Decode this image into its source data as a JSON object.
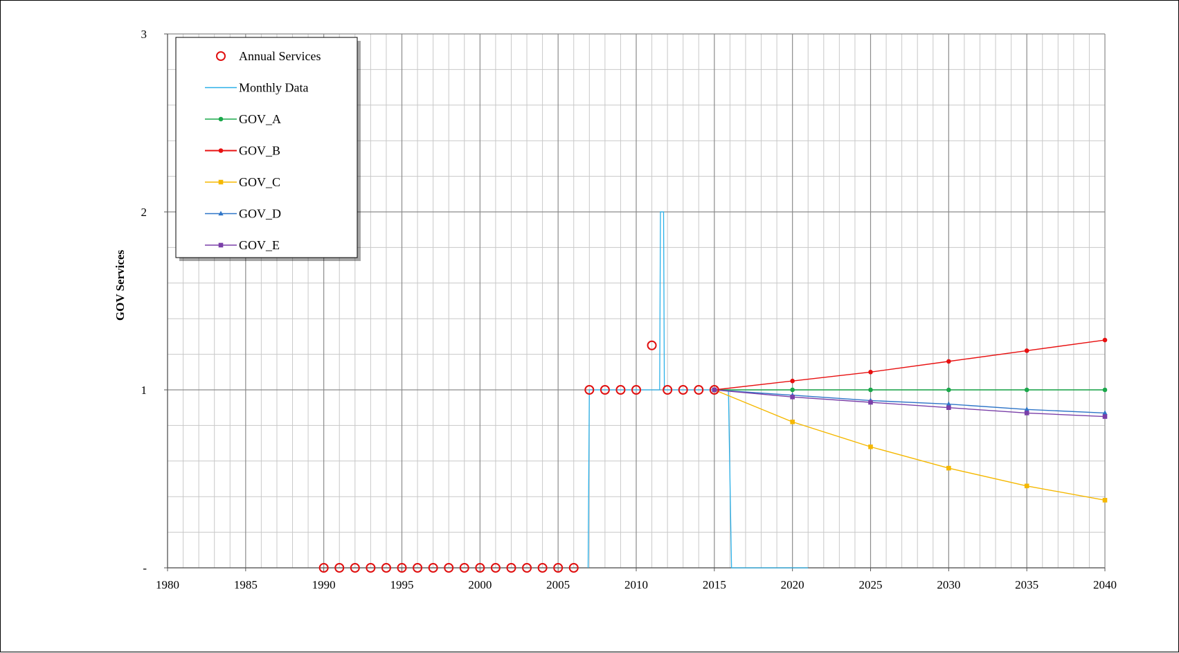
{
  "chart_data": {
    "type": "line",
    "xlabel": "",
    "ylabel": "GOV Services",
    "xlim": [
      1980,
      2040
    ],
    "ylim": [
      0,
      3
    ],
    "x_ticks": [
      "1980",
      "1985",
      "1990",
      "1995",
      "2000",
      "2005",
      "2010",
      "2015",
      "2020",
      "2025",
      "2030",
      "2035",
      "2040"
    ],
    "y_ticks": [
      "-",
      "1",
      "2",
      "3"
    ],
    "grid": true,
    "legend_position": "top-left",
    "series": [
      {
        "name": "Annual Services",
        "kind": "markers",
        "color": "#e01010",
        "marker": "open-circle",
        "x": [
          1990,
          1991,
          1992,
          1993,
          1994,
          1995,
          1996,
          1997,
          1998,
          1999,
          2000,
          2001,
          2002,
          2003,
          2004,
          2005,
          2006,
          2007,
          2008,
          2009,
          2010,
          2011,
          2012,
          2013,
          2014,
          2015
        ],
        "values": [
          0,
          0,
          0,
          0,
          0,
          0,
          0,
          0,
          0,
          0,
          0,
          0,
          0,
          0,
          0,
          0,
          0,
          1,
          1,
          1,
          1,
          1.25,
          1,
          1,
          1,
          1
        ]
      },
      {
        "name": "Monthly Data",
        "kind": "line",
        "color": "#2ab0e8",
        "marker": "none",
        "x": [
          2006.92,
          2007.0,
          2011.5,
          2011.55,
          2011.75,
          2011.8,
          2015.9,
          2016.1,
          2021.0
        ],
        "values": [
          0,
          1,
          1,
          2,
          2,
          1,
          1,
          0,
          0
        ]
      },
      {
        "name": "GOV_A",
        "kind": "line",
        "color": "#1aa84a",
        "marker": "circle",
        "x": [
          2015,
          2020,
          2025,
          2030,
          2035,
          2040
        ],
        "values": [
          1,
          1,
          1,
          1,
          1,
          1
        ]
      },
      {
        "name": "GOV_B",
        "kind": "line",
        "color": "#e81010",
        "marker": "circle",
        "x": [
          2015,
          2020,
          2025,
          2030,
          2035,
          2040
        ],
        "values": [
          1,
          1.05,
          1.1,
          1.16,
          1.22,
          1.28
        ]
      },
      {
        "name": "GOV_C",
        "kind": "line",
        "color": "#f5b800",
        "marker": "square",
        "x": [
          2015,
          2020,
          2025,
          2030,
          2035,
          2040
        ],
        "values": [
          1,
          0.82,
          0.68,
          0.56,
          0.46,
          0.38
        ]
      },
      {
        "name": "GOV_D",
        "kind": "line",
        "color": "#2e75c8",
        "marker": "triangle",
        "x": [
          2015,
          2020,
          2025,
          2030,
          2035,
          2040
        ],
        "values": [
          1,
          0.97,
          0.94,
          0.92,
          0.89,
          0.87
        ]
      },
      {
        "name": "GOV_E",
        "kind": "line",
        "color": "#7a3fa8",
        "marker": "square",
        "x": [
          2015,
          2020,
          2025,
          2030,
          2035,
          2040
        ],
        "values": [
          1,
          0.96,
          0.93,
          0.9,
          0.87,
          0.85
        ]
      }
    ]
  }
}
